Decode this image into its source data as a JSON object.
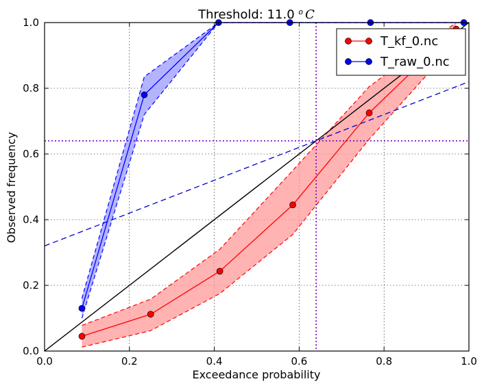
{
  "chart_data": {
    "type": "line",
    "title": "Threshold: 11.0 °C",
    "title_parts": {
      "prefix": "Threshold: 11.0 ",
      "degree": "o",
      "unit": "C"
    },
    "xlabel": "Exceedance probability",
    "ylabel": "Observed frequency",
    "xlim": [
      0,
      1
    ],
    "ylim": [
      0,
      1
    ],
    "xticks": [
      0.0,
      0.2,
      0.4,
      0.6,
      0.8,
      1.0
    ],
    "yticks": [
      0.0,
      0.2,
      0.4,
      0.6,
      0.8,
      1.0
    ],
    "xtick_labels": [
      "0.0",
      "0.2",
      "0.4",
      "0.6",
      "0.8",
      "1.0"
    ],
    "ytick_labels": [
      "0.0",
      "0.2",
      "0.4",
      "0.6",
      "0.8",
      "1.0"
    ],
    "grid": true,
    "legend_position": "top-right",
    "series": [
      {
        "name": "T_kf_0.nc",
        "color": "#ff0000",
        "band_color": "#ff9999",
        "x": [
          0.088,
          0.25,
          0.413,
          0.585,
          0.765,
          0.97
        ],
        "y": [
          0.045,
          0.112,
          0.243,
          0.445,
          0.725,
          0.98
        ],
        "lower": [
          0.012,
          0.062,
          0.175,
          0.355,
          0.645,
          0.94
        ],
        "upper": [
          0.078,
          0.158,
          0.31,
          0.55,
          0.805,
          1.0
        ]
      },
      {
        "name": "T_raw_0.nc",
        "color": "#0000ff",
        "band_color": "#9999ff",
        "x": [
          0.088,
          0.235,
          0.41,
          0.578,
          0.768,
          0.988
        ],
        "y": [
          0.13,
          0.78,
          1.0,
          1.0,
          1.0,
          1.0
        ],
        "lower": [
          0.1,
          0.72,
          1.0,
          1.0,
          1.0,
          1.0
        ],
        "upper": [
          0.16,
          0.835,
          1.0,
          1.0,
          1.0,
          1.0
        ]
      }
    ],
    "reference_lines": [
      {
        "kind": "diagonal",
        "x": [
          0,
          1
        ],
        "y": [
          0,
          1
        ],
        "color": "#000000"
      },
      {
        "kind": "skill",
        "x": [
          0,
          1
        ],
        "y": [
          0.32,
          0.82
        ],
        "color": "#0000cc"
      },
      {
        "kind": "climatology-horizontal",
        "y": 0.64,
        "color": "#7700bb"
      },
      {
        "kind": "climatology-vertical",
        "x": 0.64,
        "color": "#7700bb"
      }
    ]
  }
}
